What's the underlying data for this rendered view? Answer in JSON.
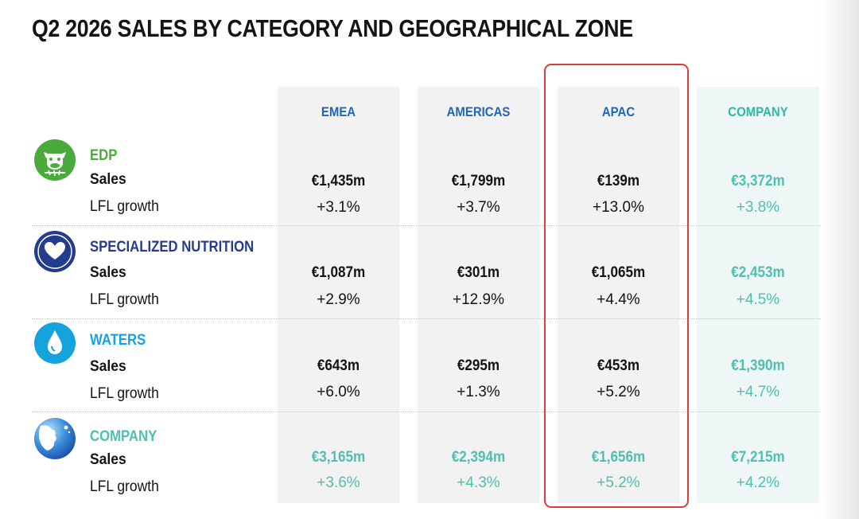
{
  "title": "Q2 2026 SALES BY CATEGORY AND GEOGRAPHICAL ZONE",
  "colors": {
    "edp": "#4aab3c",
    "specialized_nutrition": "#243c8e",
    "waters": "#14a3dd",
    "company": "#4fc0b0",
    "header_blue": "#2066b8",
    "highlight": "#e23a3a"
  },
  "columns": [
    "EMEA",
    "AMERICAS",
    "APAC",
    "COMPANY"
  ],
  "highlighted_column": "APAC",
  "row_labels": {
    "sales": "Sales",
    "lfl": "LFL growth"
  },
  "categories": [
    {
      "name": "EDP",
      "icon": "cow-icon",
      "sales": [
        "€1,435m",
        "€1,799m",
        "€139m",
        "€3,372m"
      ],
      "lfl": [
        "+3.1%",
        "+3.7%",
        "+13.0%",
        "+3.8%"
      ]
    },
    {
      "name": "SPECIALIZED NUTRITION",
      "icon": "heart-hand-icon",
      "sales": [
        "€1,087m",
        "€301m",
        "€1,065m",
        "€2,453m"
      ],
      "lfl": [
        "+2.9%",
        "+12.9%",
        "+4.4%",
        "+4.5%"
      ]
    },
    {
      "name": "WATERS",
      "icon": "water-drop-icon",
      "sales": [
        "€643m",
        "€295m",
        "€453m",
        "€1,390m"
      ],
      "lfl": [
        "+6.0%",
        "+1.3%",
        "+5.2%",
        "+4.7%"
      ]
    },
    {
      "name": "COMPANY",
      "icon": "company-logo-icon",
      "sales": [
        "€3,165m",
        "€2,394m",
        "€1,656m",
        "€7,215m"
      ],
      "lfl": [
        "+3.6%",
        "+4.3%",
        "+5.2%",
        "+4.2%"
      ]
    }
  ]
}
